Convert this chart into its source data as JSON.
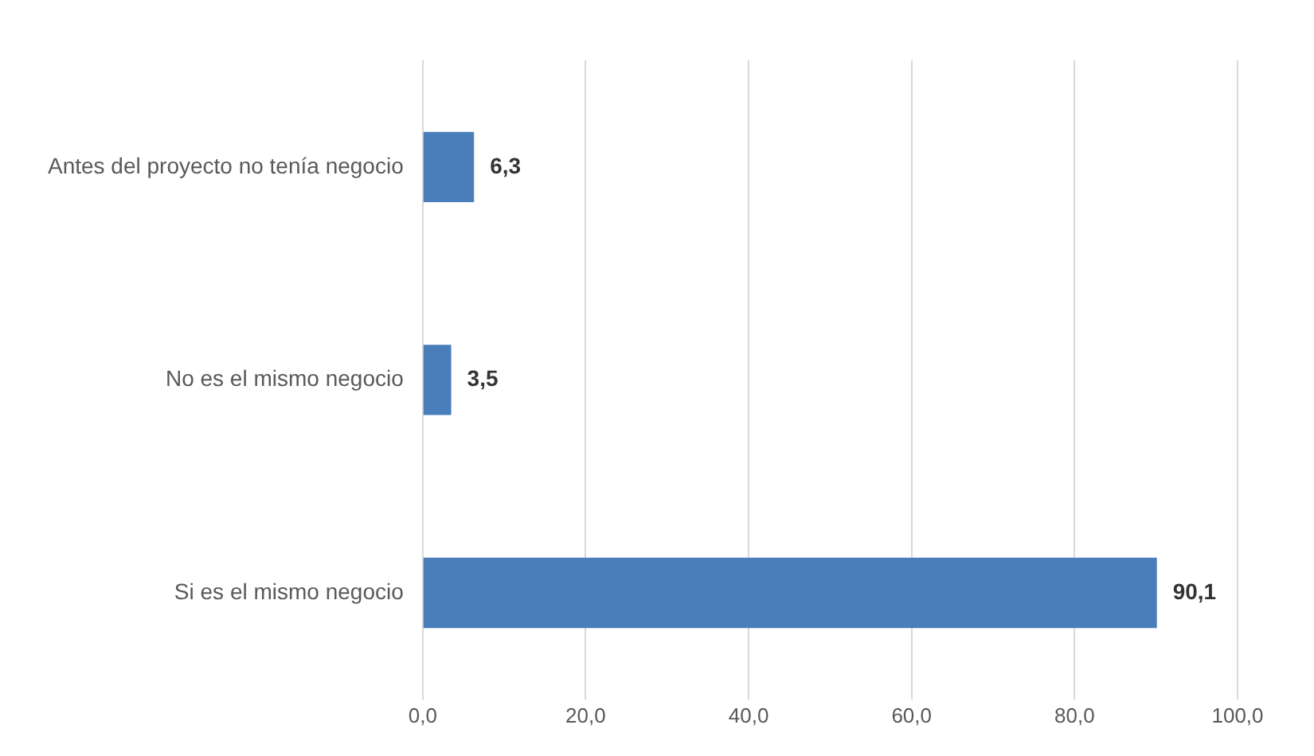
{
  "chart_data": {
    "type": "bar",
    "orientation": "horizontal",
    "categories": [
      "Antes del proyecto no tenía negocio",
      "No es el mismo negocio",
      "Si es el mismo negocio"
    ],
    "values": [
      6.3,
      3.5,
      90.1
    ],
    "color": "#4a7ebb",
    "value_labels": [
      "6,3",
      "3,5",
      "90,1"
    ],
    "xlim": [
      0,
      100
    ],
    "xticks": [
      {
        "value": 0,
        "label": "0,0"
      },
      {
        "value": 20,
        "label": "20,0"
      },
      {
        "value": 40,
        "label": "40,0"
      },
      {
        "value": 60,
        "label": "60,0"
      },
      {
        "value": 80,
        "label": "80,0"
      },
      {
        "value": 100,
        "label": "100,0"
      }
    ],
    "grid": "x",
    "legend": false
  }
}
